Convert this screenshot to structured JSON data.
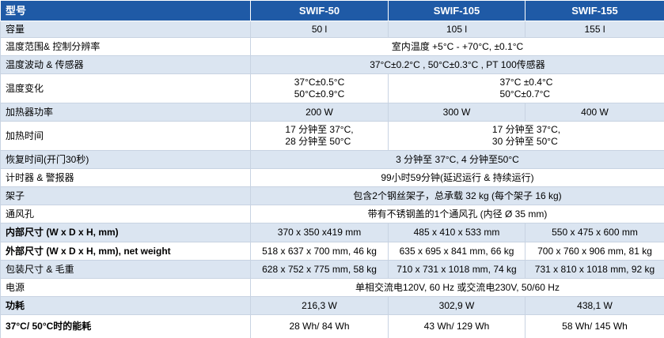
{
  "table": {
    "header": [
      "型号",
      "SWIF-50",
      "SWIF-105",
      "SWIF-155"
    ],
    "rows": [
      [
        "容量",
        "50 l",
        "105 l",
        "155 l"
      ],
      [
        "温度范围& 控制分辨率",
        "室内温度  +5°C - +70°C, ±0.1°C"
      ],
      [
        "温度波动  & 传感器",
        "37°C±0.2°C , 50°C±0.3°C , PT 100传感器"
      ],
      [
        "温度变化",
        [
          "37°C±0.5°C",
          "50°C±0.9°C"
        ],
        [
          "37°C ±0.4°C",
          "50°C±0.7°C"
        ]
      ],
      [
        "加热器功率",
        "200 W",
        "300 W",
        "400 W"
      ],
      [
        "加热时间",
        [
          "17 分钟至 37°C,",
          "28 分钟至  50°C"
        ],
        [
          "17 分钟至  37°C,",
          "30 分钟至  50°C"
        ]
      ],
      [
        "恢复时间(开门30秒)",
        "3 分钟至  37°C, 4 分钟至50°C"
      ],
      [
        "计时器  & 警报器",
        "99小时59分钟(延迟运行  & 持续运行)"
      ],
      [
        "架子",
        "包含2个钢丝架子，总承载  32 kg (每个架子 16 kg)"
      ],
      [
        "通风孔",
        "带有不锈钢盖的1个通风孔  (内径  Ø 35 mm)"
      ],
      [
        "内部尺寸  (W x D x H, mm)",
        "370 x 350 x419 mm",
        "485 x 410 x 533 mm",
        "550 x 475 x 600 mm"
      ],
      [
        "外部尺寸  (W x D x H, mm), net weight",
        "518 x 637 x 700 mm, 46 kg",
        "635 x 695 x 841 mm, 66 kg",
        "700 x 760 x 906 mm, 81 kg"
      ],
      [
        "包装尺寸  & 毛重",
        "628 x 752 x 775 mm, 58 kg",
        "710 x 731 x 1018 mm, 74 kg",
        "731 x 810 x 1018 mm, 92 kg"
      ],
      [
        "电源",
        "单相交流电120V, 60 Hz 或交流电230V, 50/60 Hz"
      ],
      [
        "功耗",
        "216,3 W",
        "302,9 W",
        "438,1 W"
      ],
      [
        "37°C/ 50°C时的能耗",
        "28 Wh/ 84 Wh",
        "43 Wh/ 129 Wh",
        "58 Wh/ 145 Wh"
      ]
    ]
  }
}
